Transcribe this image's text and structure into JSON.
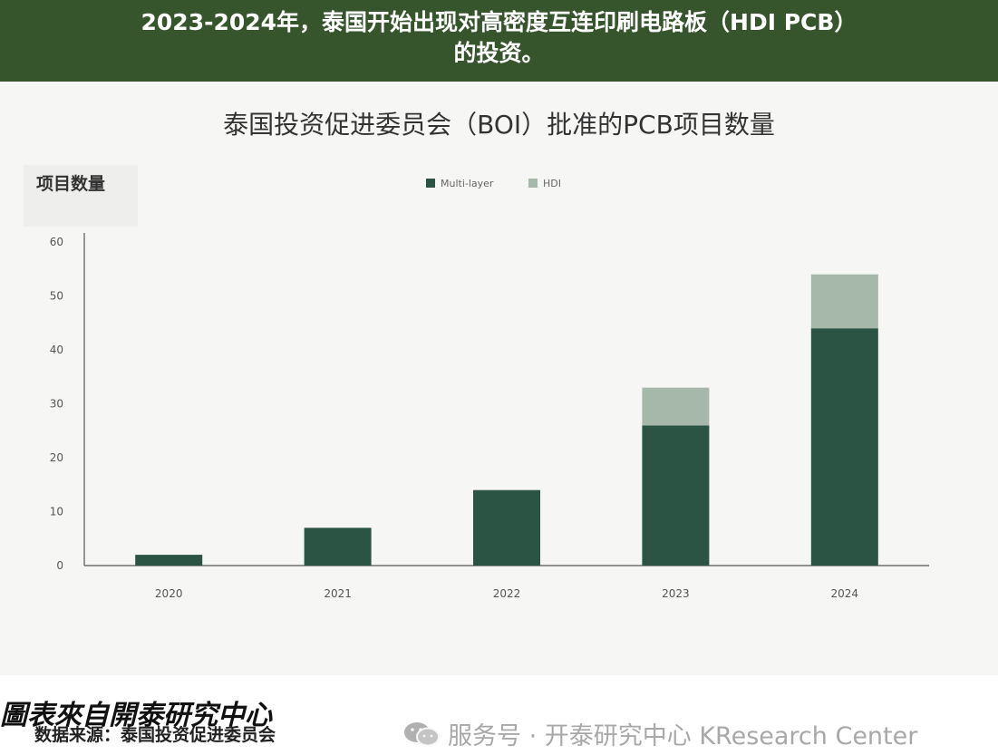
{
  "banner": {
    "title_line1": "2023-2024年，泰国开始出现对高密度互连印刷电路板（HDI PCB）",
    "title_line2": "的投资。"
  },
  "footer": {
    "source": "数据来源：泰国投资促进委员会",
    "watermark": "服务号 · 开泰研究中心 KResearch Center",
    "caption": "圖表來自開泰研究中心"
  },
  "icons": {
    "watermark": "wechat-icon"
  },
  "chart_data": {
    "type": "bar",
    "stacked": true,
    "title": "泰国投资促进委员会（BOI）批准的PCB项目数量",
    "ylabel": "项目数量",
    "xlabel": "",
    "categories": [
      "2020",
      "2021",
      "2022",
      "2023",
      "2024"
    ],
    "series": [
      {
        "name": "Multi-layer",
        "color": "#2b5444",
        "values": [
          2,
          7,
          14,
          26,
          44
        ]
      },
      {
        "name": "HDI",
        "color": "#a6b8aa",
        "values": [
          0,
          0,
          0,
          7,
          10
        ]
      }
    ],
    "ylim": [
      0,
      60
    ],
    "yticks": [
      0,
      10,
      20,
      30,
      40,
      50,
      60
    ],
    "legend": "top-center",
    "grid": false
  }
}
